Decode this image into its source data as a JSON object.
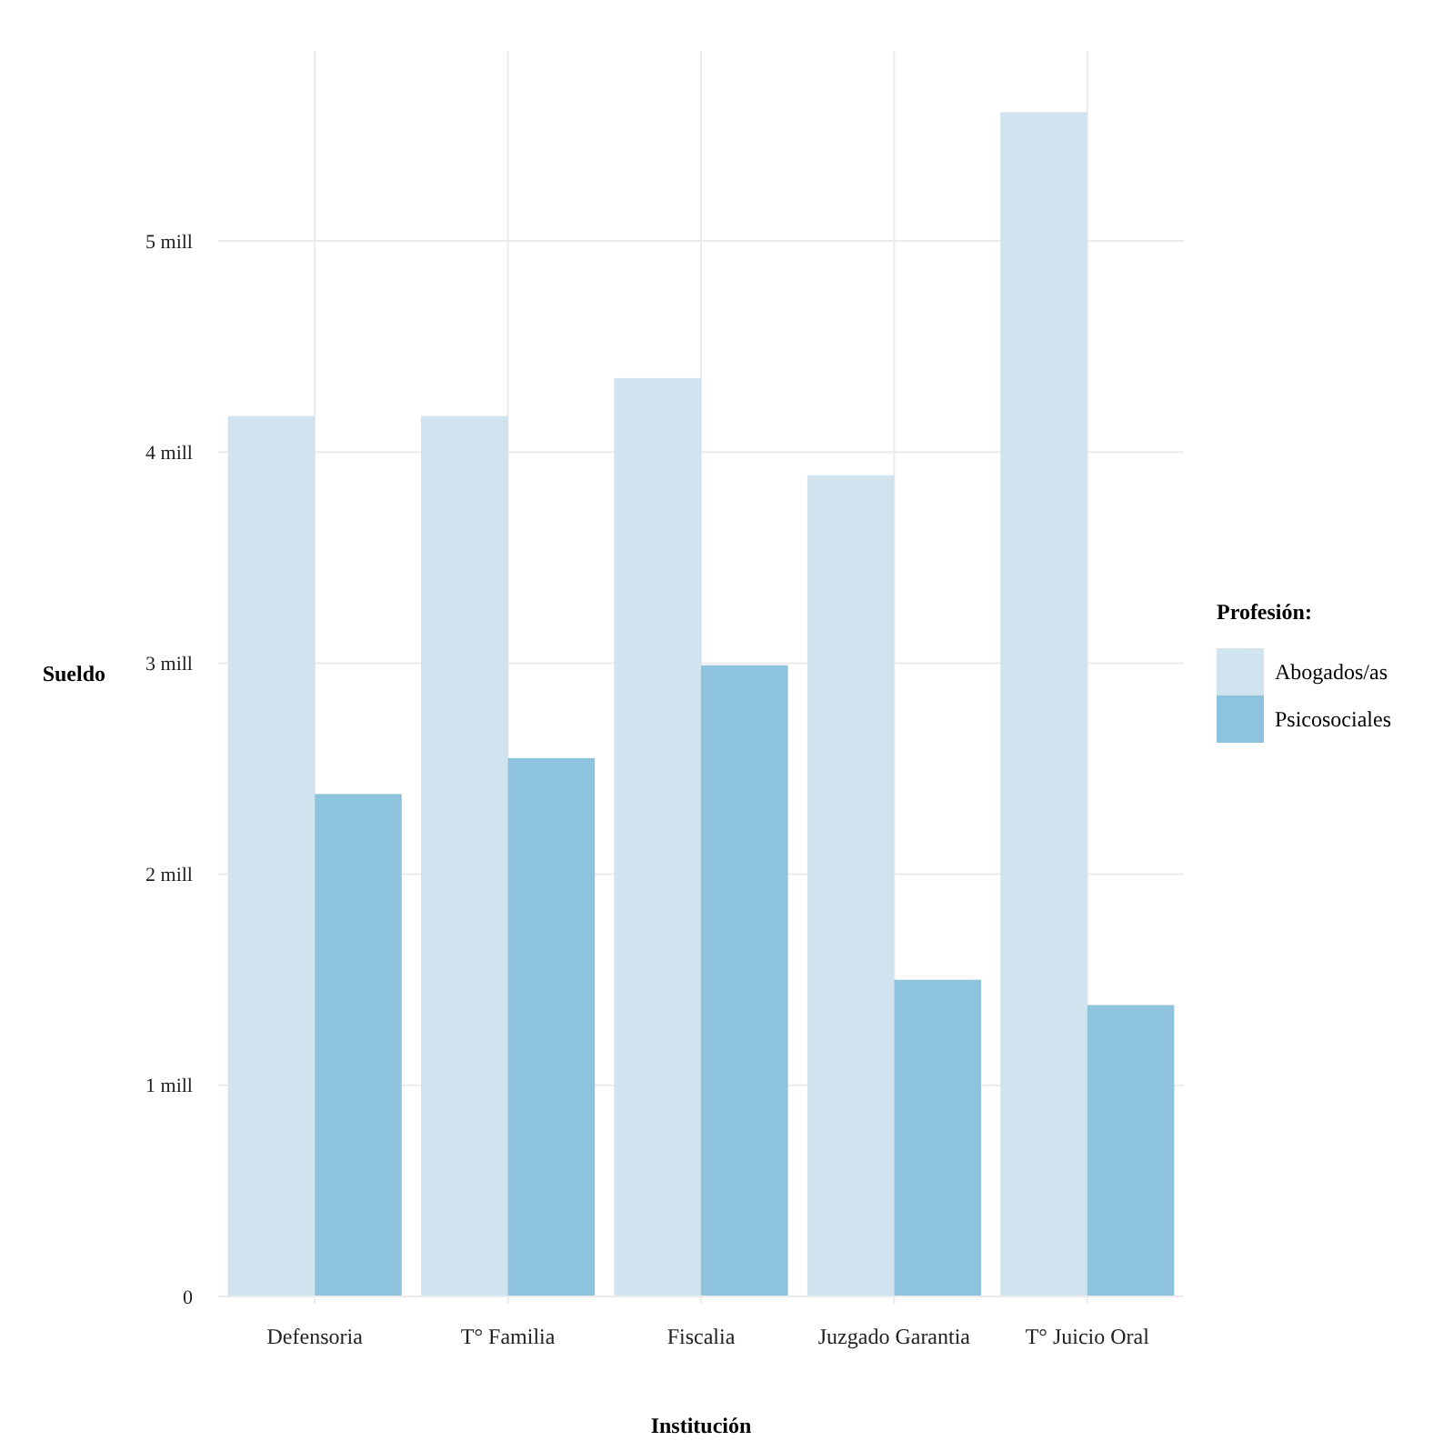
{
  "chart_data": {
    "type": "bar",
    "xlabel": "Institución",
    "ylabel": "Sueldo",
    "legend_title": "Profesión:",
    "categories": [
      "Defensoria",
      "T° Familia",
      "Fiscalia",
      "Juzgado Garantia",
      "T° Juicio Oral"
    ],
    "series": [
      {
        "name": "Abogados/as",
        "color": "#d2e3f0",
        "values": [
          4.17,
          4.17,
          4.35,
          3.89,
          5.61
        ]
      },
      {
        "name": "Psicosociales",
        "color": "#8dc3dc",
        "values": [
          2.38,
          2.55,
          2.99,
          1.5,
          1.38
        ]
      }
    ],
    "ylim": [
      0,
      5.9
    ],
    "yticks": [
      0,
      {
        "value": 1,
        "label": "1 mill"
      },
      {
        "value": 2,
        "label": "2 mill"
      },
      {
        "value": 3,
        "label": "3 mill"
      },
      {
        "value": 4,
        "label": "4 mill"
      },
      {
        "value": 5,
        "label": "5 mill"
      }
    ],
    "grid": true,
    "legend": "right"
  }
}
